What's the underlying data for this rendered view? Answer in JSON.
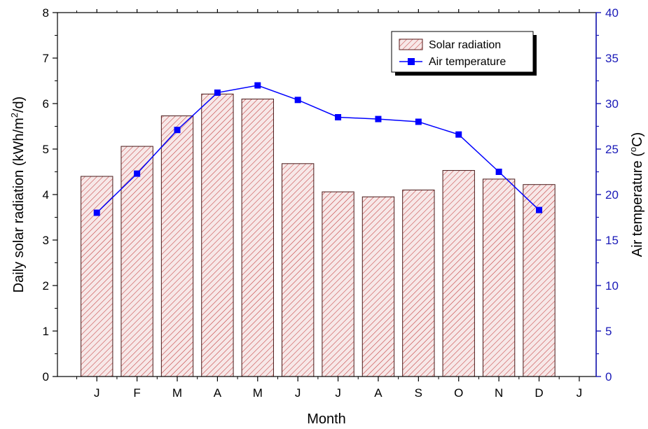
{
  "chart_data": {
    "type": "bar",
    "categories": [
      "J",
      "F",
      "M",
      "A",
      "M",
      "J",
      "J",
      "A",
      "S",
      "O",
      "N",
      "D"
    ],
    "extra_x_tick": "J",
    "xlabel": "Month",
    "ylabel_left": "Daily solar radiation (kWh/m2/d)",
    "ylabel_left_parts": {
      "before": "Daily solar radiation (kWh/m",
      "sup": "2",
      "after": "/d)"
    },
    "ylabel_right": "Air temperature (oC)",
    "ylabel_right_parts": {
      "before": "Air temperature (",
      "sup": "o",
      "after": "C)"
    },
    "ylim_left": [
      0,
      8
    ],
    "yticks_left": [
      "0",
      "1",
      "2",
      "3",
      "4",
      "5",
      "6",
      "7",
      "8"
    ],
    "ylim_right": [
      0,
      40
    ],
    "yticks_right": [
      "0",
      "5",
      "10",
      "15",
      "20",
      "25",
      "30",
      "35",
      "40"
    ],
    "grid": false,
    "legend_position": "top-right",
    "series": [
      {
        "name": "Solar radiation",
        "type": "bar",
        "axis": "left",
        "values": [
          4.4,
          5.06,
          5.73,
          6.21,
          6.1,
          4.68,
          4.06,
          3.95,
          4.1,
          4.53,
          4.34,
          4.22
        ],
        "color": "#b22222",
        "fill": "#f7e8e8"
      },
      {
        "name": "Air temperature",
        "type": "line",
        "axis": "right",
        "values": [
          18.0,
          22.3,
          27.1,
          31.2,
          32.0,
          30.4,
          28.5,
          28.3,
          28.0,
          26.6,
          22.5,
          18.3
        ],
        "color": "#0000ff"
      }
    ],
    "colors": {
      "left_axis": "#000000",
      "right_axis": "#1a1ab8"
    }
  }
}
